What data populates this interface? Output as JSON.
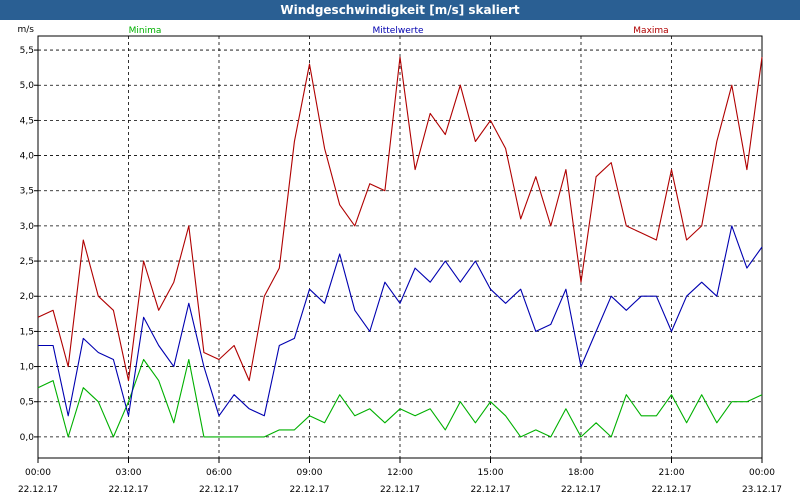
{
  "window": {
    "title": "Windgeschwindigkeit [m/s] skaliert"
  },
  "chart_data": {
    "type": "line",
    "title": "Windgeschwindigkeit [m/s] skaliert",
    "ylabel": "m/s",
    "xlabel": "",
    "ylim": [
      -0.3,
      5.7
    ],
    "xlim_hours": [
      0,
      24
    ],
    "grid": true,
    "y_ticks": [
      "0,0",
      "0,5",
      "1,0",
      "1,5",
      "2,0",
      "2,5",
      "3,0",
      "3,5",
      "4,0",
      "4,5",
      "5,0",
      "5,5"
    ],
    "y_tick_values": [
      0,
      0.5,
      1,
      1.5,
      2,
      2.5,
      3,
      3.5,
      4,
      4.5,
      5,
      5.5
    ],
    "x_ticks": [
      {
        "time": "00:00",
        "date": "22.12.17"
      },
      {
        "time": "03:00",
        "date": "22.12.17"
      },
      {
        "time": "06:00",
        "date": "22.12.17"
      },
      {
        "time": "09:00",
        "date": "22.12.17"
      },
      {
        "time": "12:00",
        "date": "22.12.17"
      },
      {
        "time": "15:00",
        "date": "22.12.17"
      },
      {
        "time": "18:00",
        "date": "22.12.17"
      },
      {
        "time": "21:00",
        "date": "22.12.17"
      },
      {
        "time": "00:00",
        "date": "23.12.17"
      }
    ],
    "x_hours": [
      0,
      0.5,
      1,
      1.5,
      2,
      2.5,
      3,
      3.5,
      4,
      4.5,
      5,
      5.5,
      6,
      6.5,
      7,
      7.5,
      8,
      8.5,
      9,
      9.5,
      10,
      10.5,
      11,
      11.5,
      12,
      12.5,
      13,
      13.5,
      14,
      14.5,
      15,
      15.5,
      16,
      16.5,
      17,
      17.5,
      18,
      18.5,
      19,
      19.5,
      20,
      20.5,
      21,
      21.5,
      22,
      22.5,
      23,
      23.5,
      24
    ],
    "series": [
      {
        "name": "Minima",
        "color": "#00b000",
        "legend": "left",
        "values": [
          0.7,
          0.8,
          0.0,
          0.7,
          0.5,
          0.0,
          0.5,
          1.1,
          0.8,
          0.2,
          1.1,
          0.0,
          0.0,
          0.0,
          0.0,
          0.0,
          0.1,
          0.1,
          0.3,
          0.2,
          0.6,
          0.3,
          0.4,
          0.2,
          0.4,
          0.3,
          0.4,
          0.1,
          0.5,
          0.2,
          0.5,
          0.3,
          0.0,
          0.1,
          0.0,
          0.4,
          0.0,
          0.2,
          0.0,
          0.6,
          0.3,
          0.3,
          0.6,
          0.2,
          0.6,
          0.2,
          0.5,
          0.5,
          0.6
        ]
      },
      {
        "name": "Mittelwerte",
        "color": "#0000b0",
        "legend": "center",
        "values": [
          1.3,
          1.3,
          0.3,
          1.4,
          1.2,
          1.1,
          0.3,
          1.7,
          1.3,
          1.0,
          1.9,
          1.0,
          0.3,
          0.6,
          0.4,
          0.3,
          1.3,
          1.4,
          2.1,
          1.9,
          2.6,
          1.8,
          1.5,
          2.2,
          1.9,
          2.4,
          2.2,
          2.5,
          2.2,
          2.5,
          2.1,
          1.9,
          2.1,
          1.5,
          1.6,
          2.1,
          1.0,
          1.5,
          2.0,
          1.8,
          2.0,
          2.0,
          1.5,
          2.0,
          2.2,
          2.0,
          3.0,
          2.4,
          2.7
        ]
      },
      {
        "name": "Maxima",
        "color": "#b00000",
        "legend": "right",
        "values": [
          1.7,
          1.8,
          1.0,
          2.8,
          2.0,
          1.8,
          0.8,
          2.5,
          1.8,
          2.2,
          3.0,
          1.2,
          1.1,
          1.3,
          0.8,
          2.0,
          2.4,
          4.2,
          5.3,
          4.1,
          3.3,
          3.0,
          3.6,
          3.5,
          5.4,
          3.8,
          4.6,
          4.3,
          5.0,
          4.2,
          4.5,
          4.1,
          3.1,
          3.7,
          3.0,
          3.8,
          2.2,
          3.7,
          3.9,
          3.0,
          2.9,
          2.8,
          3.8,
          2.8,
          3.0,
          4.2,
          5.0,
          3.8,
          5.4
        ]
      }
    ]
  }
}
